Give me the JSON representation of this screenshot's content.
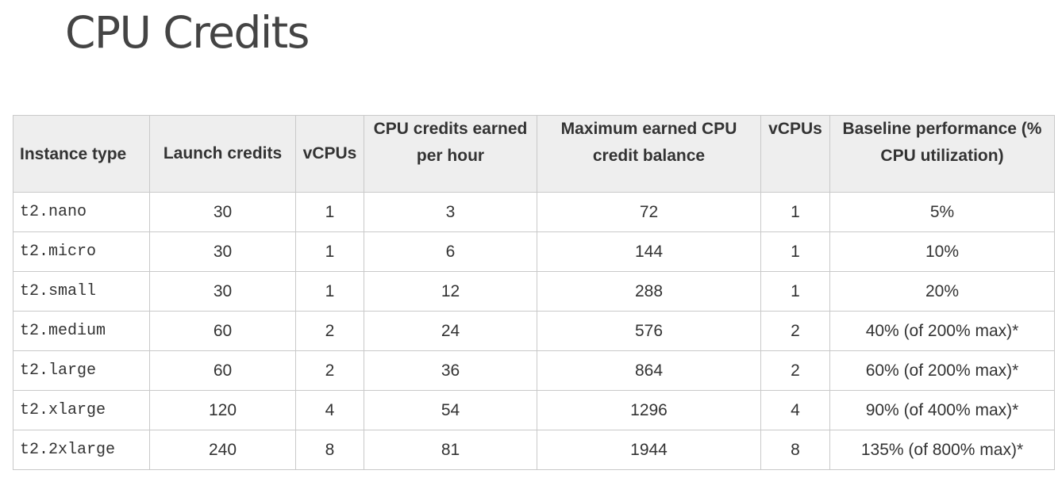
{
  "title": "CPU Credits",
  "table": {
    "headers": [
      "Instance type",
      "Launch credits",
      "vCPUs",
      "CPU credits earned per hour",
      "Maximum earned CPU credit balance",
      "vCPUs",
      "Baseline performance (% CPU utilization)"
    ],
    "rows": [
      [
        "t2.nano",
        "30",
        "1",
        "3",
        "72",
        "1",
        "5%"
      ],
      [
        "t2.micro",
        "30",
        "1",
        "6",
        "144",
        "1",
        "10%"
      ],
      [
        "t2.small",
        "30",
        "1",
        "12",
        "288",
        "1",
        "20%"
      ],
      [
        "t2.medium",
        "60",
        "2",
        "24",
        "576",
        "2",
        "40% (of 200% max)*"
      ],
      [
        "t2.large",
        "60",
        "2",
        "36",
        "864",
        "2",
        "60% (of 200% max)*"
      ],
      [
        "t2.xlarge",
        "120",
        "4",
        "54",
        "1296",
        "4",
        "90% (of 400% max)*"
      ],
      [
        "t2.2xlarge",
        "240",
        "8",
        "81",
        "1944",
        "8",
        "135% (of 800% max)*"
      ]
    ]
  }
}
